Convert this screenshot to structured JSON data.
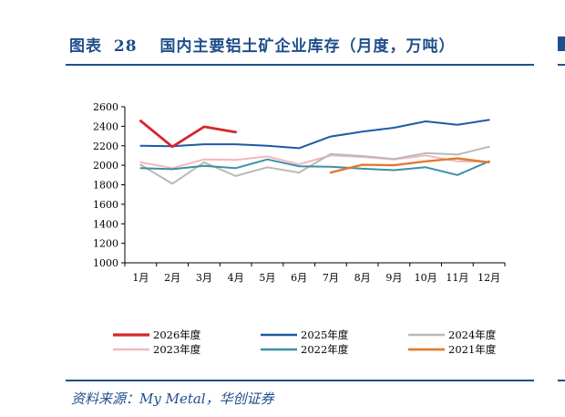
{
  "header": {
    "label": "图表",
    "number": "28",
    "title": "国内主要铝土矿企业库存（月度，万吨）"
  },
  "source": "资料来源：My Metal，华创证券",
  "colors": {
    "accent": "#1f4e8c"
  },
  "chart_data": {
    "type": "line",
    "title": "",
    "xlabel": "",
    "ylabel": "",
    "categories": [
      "1月",
      "2月",
      "3月",
      "4月",
      "5月",
      "6月",
      "7月",
      "8月",
      "9月",
      "10月",
      "11月",
      "12月"
    ],
    "ylim": [
      1000,
      2600
    ],
    "yticks": [
      "2600",
      "2400",
      "2200",
      "2000",
      "1800",
      "1600",
      "1400",
      "1200",
      "1000"
    ],
    "legend_position": "bottom",
    "series": [
      {
        "name": "2026年度",
        "color": "#d7262e",
        "width": 2.8,
        "values": [
          2455,
          2190,
          2395,
          2340,
          null,
          null,
          null,
          null,
          null,
          null,
          null,
          null
        ]
      },
      {
        "name": "2025年度",
        "color": "#1d5aa6",
        "width": 2.0,
        "values": [
          2200,
          2195,
          2215,
          2215,
          2200,
          2175,
          2295,
          2345,
          2385,
          2450,
          2415,
          2465
        ]
      },
      {
        "name": "2024年度",
        "color": "#b9b9b9",
        "width": 2.0,
        "values": [
          2005,
          1810,
          2030,
          1890,
          1980,
          1925,
          2115,
          2095,
          2065,
          2125,
          2110,
          2190
        ]
      },
      {
        "name": "2023年度",
        "color": "#f0b8be",
        "width": 2.0,
        "values": [
          2030,
          1970,
          2060,
          2055,
          2090,
          2010,
          2100,
          2085,
          2060,
          2100,
          2040,
          2035
        ]
      },
      {
        "name": "2022年度",
        "color": "#3d8fa6",
        "width": 2.0,
        "values": [
          1970,
          1960,
          1995,
          1970,
          2060,
          1990,
          1985,
          1965,
          1950,
          1980,
          1900,
          2040
        ]
      },
      {
        "name": "2021年度",
        "color": "#e07b32",
        "width": 2.4,
        "values": [
          null,
          null,
          null,
          null,
          null,
          null,
          1925,
          2005,
          2000,
          2040,
          2070,
          2030
        ]
      }
    ]
  }
}
